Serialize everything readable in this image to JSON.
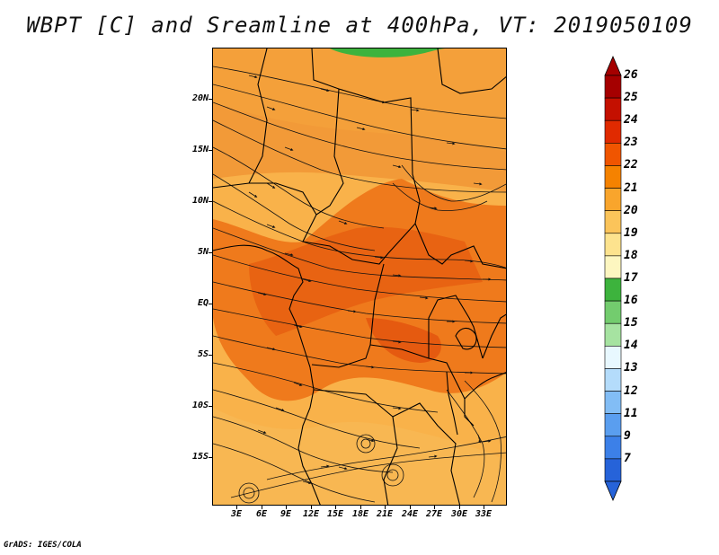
{
  "title": "WBPT [C] and Sreamline at 400hPa, VT: 2019050109",
  "footer": "GrADS: IGES/COLA",
  "lat_labels": [
    "20N",
    "15N",
    "10N",
    "5N",
    "EQ",
    "5S",
    "10S",
    "15S"
  ],
  "lat_values": [
    20,
    15,
    10,
    5,
    0,
    -5,
    -10,
    -15
  ],
  "lon_labels": [
    "3E",
    "6E",
    "9E",
    "12E",
    "15E",
    "18E",
    "21E",
    "24E",
    "27E",
    "30E",
    "33E"
  ],
  "lon_values": [
    3,
    6,
    9,
    12,
    15,
    18,
    21,
    24,
    27,
    30,
    33
  ],
  "map_extent": {
    "lon_min": 0,
    "lon_max": 36,
    "lat_min": -20,
    "lat_max": 25
  },
  "colorbar": {
    "labels": [
      "26",
      "25",
      "24",
      "23",
      "22",
      "21",
      "20",
      "19",
      "18",
      "17",
      "16",
      "15",
      "14",
      "13",
      "12",
      "11",
      "9",
      "7"
    ],
    "colors": [
      "#a50000",
      "#c41000",
      "#e02a00",
      "#f05500",
      "#f58200",
      "#f9a52c",
      "#fbc45a",
      "#fde38e",
      "#fdf6c0",
      "#3db33d",
      "#73cc6e",
      "#a6e3a1",
      "#e8f8ff",
      "#b4dcfb",
      "#82bdf5",
      "#5a9eef",
      "#3c80e8",
      "#2663d9"
    ],
    "triangle_top": "#a50000",
    "triangle_bottom": "#2663d9"
  }
}
